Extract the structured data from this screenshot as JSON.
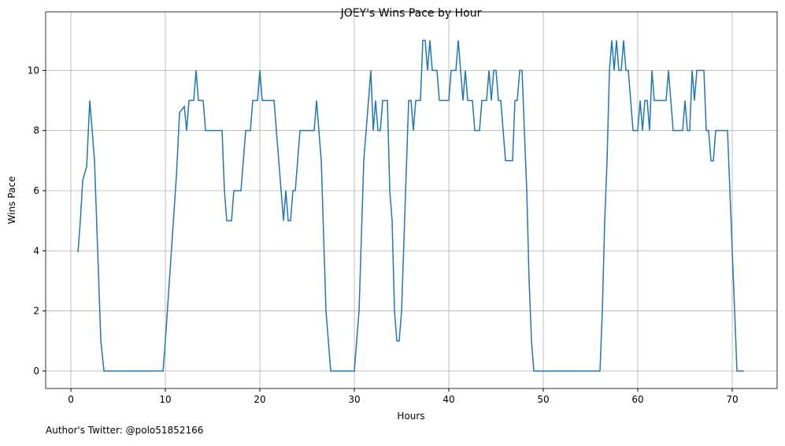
{
  "chart_data": {
    "type": "line",
    "title": "JOEY's Wins Pace by Hour",
    "xlabel": "Hours",
    "ylabel": "Wins Pace",
    "footnote": "Author's Twitter: @polo51852166",
    "grid": true,
    "xlim": [
      -2.67,
      74.75
    ],
    "ylim": [
      -0.58,
      11.95
    ],
    "xticks": [
      0,
      10,
      20,
      30,
      40,
      50,
      60,
      70
    ],
    "yticks": [
      0,
      2,
      4,
      6,
      8,
      10
    ],
    "series": [
      {
        "name": "Wins Pace",
        "color": "#1f77b4",
        "x": [
          0.75,
          1.0,
          1.25,
          1.67,
          2.0,
          2.5,
          3.17,
          3.5,
          9.75,
          10.0,
          11.17,
          11.5,
          12.0,
          12.25,
          12.5,
          13.0,
          13.25,
          13.5,
          14.0,
          14.25,
          16.0,
          16.25,
          16.5,
          17.0,
          17.25,
          18.0,
          18.5,
          19.0,
          19.25,
          19.75,
          20.0,
          20.25,
          21.5,
          22.5,
          22.75,
          23.0,
          23.25,
          23.5,
          23.75,
          24.25,
          25.75,
          26.0,
          26.5,
          27.0,
          27.5,
          30.0,
          30.5,
          31.0,
          31.75,
          32.0,
          32.25,
          32.5,
          32.75,
          33.0,
          33.5,
          33.75,
          34.0,
          34.25,
          34.5,
          34.75,
          35.0,
          35.75,
          36.0,
          36.25,
          36.5,
          37.0,
          37.25,
          37.5,
          37.75,
          38.0,
          38.25,
          38.75,
          39.0,
          40.0,
          40.25,
          40.75,
          41.0,
          41.25,
          41.5,
          41.75,
          42.0,
          42.5,
          42.75,
          43.25,
          43.5,
          44.0,
          44.25,
          44.5,
          44.75,
          45.0,
          45.25,
          45.5,
          46.0,
          46.75,
          47.0,
          47.25,
          47.5,
          47.75,
          48.25,
          48.5,
          48.75,
          49.0,
          56.0,
          56.25,
          56.5,
          56.75,
          57.0,
          57.25,
          57.5,
          57.75,
          58.0,
          58.25,
          58.5,
          58.75,
          59.0,
          59.5,
          60.0,
          60.25,
          60.5,
          60.75,
          61.0,
          61.25,
          61.5,
          61.75,
          63.0,
          63.25,
          63.75,
          64.75,
          65.0,
          65.25,
          65.5,
          65.75,
          66.0,
          66.25,
          67.0,
          67.25,
          67.5,
          67.75,
          68.0,
          68.25,
          69.5,
          70.0,
          70.5,
          71.25
        ],
        "values": [
          3.95,
          5,
          6.35,
          6.8,
          9,
          7,
          1,
          0,
          0,
          1,
          6.5,
          8.6,
          8.8,
          8,
          9,
          9,
          10,
          9,
          9,
          8,
          8,
          6,
          5,
          5,
          6,
          6,
          8,
          8,
          9,
          9,
          10,
          9,
          9,
          5,
          6,
          5,
          5,
          6,
          6,
          8,
          8,
          9,
          7,
          2,
          0,
          0,
          2,
          7,
          10,
          8,
          9,
          8,
          8,
          9,
          9,
          6,
          5,
          2,
          1,
          1,
          2,
          9,
          9,
          8,
          9,
          9,
          11,
          11,
          10,
          11,
          10,
          10,
          9,
          9,
          10,
          10,
          11,
          10,
          9,
          10,
          9,
          9,
          8,
          8,
          9,
          9,
          10,
          9,
          10,
          10,
          9,
          9,
          7,
          7,
          9,
          9,
          10,
          10,
          6,
          3,
          1,
          0,
          0,
          2,
          5,
          7,
          10,
          11,
          10,
          11,
          10,
          10,
          11,
          10,
          10,
          8,
          8,
          9,
          8,
          9,
          9,
          8,
          10,
          9,
          9,
          10,
          8,
          8,
          9,
          8,
          8,
          10,
          9,
          10,
          10,
          8,
          8,
          7,
          7,
          8,
          8,
          4,
          0,
          0
        ]
      }
    ]
  }
}
